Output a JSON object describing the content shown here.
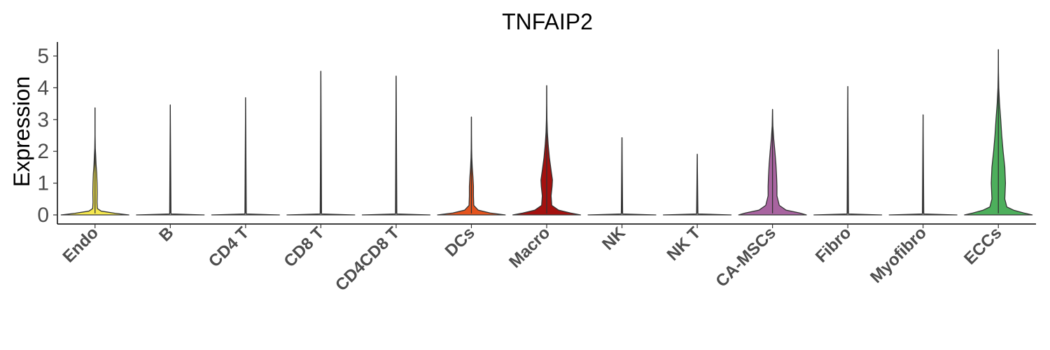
{
  "chart_data": {
    "type": "violin",
    "title": "TNFAIP2",
    "xlabel": "",
    "ylabel": "Expression",
    "ylim": [
      -0.25,
      5.4
    ],
    "yticks": [
      "0",
      "1",
      "2",
      "3",
      "4",
      "5"
    ],
    "grid": false,
    "legend": "none",
    "categories": [
      "Endo",
      "B",
      "CD4 T",
      "CD8 T",
      "CD4CD8 T",
      "DCs",
      "Macro",
      "NK",
      "NK T",
      "CA-MSCs",
      "Fibro",
      "Myofibro",
      "ECCs"
    ],
    "colors": [
      "#f5e84f",
      "#ffffff",
      "#ffffff",
      "#ffffff",
      "#ffffff",
      "#e4541e",
      "#a4110f",
      "#ffffff",
      "#ffffff",
      "#a864a0",
      "#ffffff",
      "#ffffff",
      "#4daf5c"
    ],
    "max_values": [
      3.37,
      3.46,
      3.69,
      4.52,
      4.37,
      3.08,
      4.07,
      2.43,
      1.91,
      3.32,
      4.04,
      3.15,
      5.2
    ],
    "density_profiles": [
      [
        [
          0,
          1.0
        ],
        [
          0.05,
          0.6
        ],
        [
          0.12,
          0.18
        ],
        [
          0.2,
          0.07
        ],
        [
          0.4,
          0.06
        ],
        [
          0.7,
          0.065
        ],
        [
          1.0,
          0.06
        ],
        [
          1.3,
          0.05
        ],
        [
          1.6,
          0.03
        ],
        [
          1.9,
          0.018
        ],
        [
          2.1,
          0.008
        ],
        [
          2.5,
          0.002
        ],
        [
          3.37,
          0.0
        ]
      ],
      [
        [
          0,
          1.0
        ],
        [
          0.03,
          0.02
        ],
        [
          3.46,
          0.0
        ]
      ],
      [
        [
          0,
          1.0
        ],
        [
          0.03,
          0.02
        ],
        [
          3.69,
          0.0
        ]
      ],
      [
        [
          0,
          1.0
        ],
        [
          0.03,
          0.02
        ],
        [
          4.52,
          0.0
        ]
      ],
      [
        [
          0,
          1.0
        ],
        [
          0.03,
          0.02
        ],
        [
          4.37,
          0.0
        ]
      ],
      [
        [
          0,
          1.0
        ],
        [
          0.06,
          0.55
        ],
        [
          0.15,
          0.2
        ],
        [
          0.3,
          0.07
        ],
        [
          0.6,
          0.06
        ],
        [
          0.9,
          0.06
        ],
        [
          1.2,
          0.045
        ],
        [
          1.5,
          0.025
        ],
        [
          1.8,
          0.012
        ],
        [
          2.1,
          0.006
        ],
        [
          2.5,
          0.002
        ],
        [
          3.08,
          0.0
        ]
      ],
      [
        [
          0,
          1.0
        ],
        [
          0.06,
          0.7
        ],
        [
          0.15,
          0.35
        ],
        [
          0.3,
          0.15
        ],
        [
          0.6,
          0.13
        ],
        [
          0.9,
          0.16
        ],
        [
          1.1,
          0.17
        ],
        [
          1.4,
          0.13
        ],
        [
          1.8,
          0.08
        ],
        [
          2.2,
          0.045
        ],
        [
          2.6,
          0.02
        ],
        [
          3.0,
          0.008
        ],
        [
          3.5,
          0.002
        ],
        [
          4.07,
          0.0
        ]
      ],
      [
        [
          0,
          1.0
        ],
        [
          0.03,
          0.02
        ],
        [
          2.43,
          0.0
        ]
      ],
      [
        [
          0,
          1.0
        ],
        [
          0.03,
          0.02
        ],
        [
          1.91,
          0.0
        ]
      ],
      [
        [
          0,
          1.0
        ],
        [
          0.06,
          0.8
        ],
        [
          0.15,
          0.4
        ],
        [
          0.3,
          0.2
        ],
        [
          0.6,
          0.13
        ],
        [
          0.9,
          0.13
        ],
        [
          1.2,
          0.12
        ],
        [
          1.6,
          0.1
        ],
        [
          2.0,
          0.07
        ],
        [
          2.4,
          0.035
        ],
        [
          2.8,
          0.01
        ],
        [
          3.32,
          0.0
        ]
      ],
      [
        [
          0,
          1.0
        ],
        [
          0.03,
          0.02
        ],
        [
          4.04,
          0.0
        ]
      ],
      [
        [
          0,
          1.0
        ],
        [
          0.03,
          0.02
        ],
        [
          3.15,
          0.0
        ]
      ],
      [
        [
          0,
          1.0
        ],
        [
          0.06,
          0.75
        ],
        [
          0.15,
          0.45
        ],
        [
          0.25,
          0.25
        ],
        [
          0.5,
          0.19
        ],
        [
          1.0,
          0.21
        ],
        [
          1.5,
          0.19
        ],
        [
          2.0,
          0.14
        ],
        [
          2.5,
          0.1
        ],
        [
          3.0,
          0.07
        ],
        [
          3.5,
          0.035
        ],
        [
          4.0,
          0.012
        ],
        [
          4.5,
          0.004
        ],
        [
          5.2,
          0.0
        ]
      ]
    ]
  }
}
